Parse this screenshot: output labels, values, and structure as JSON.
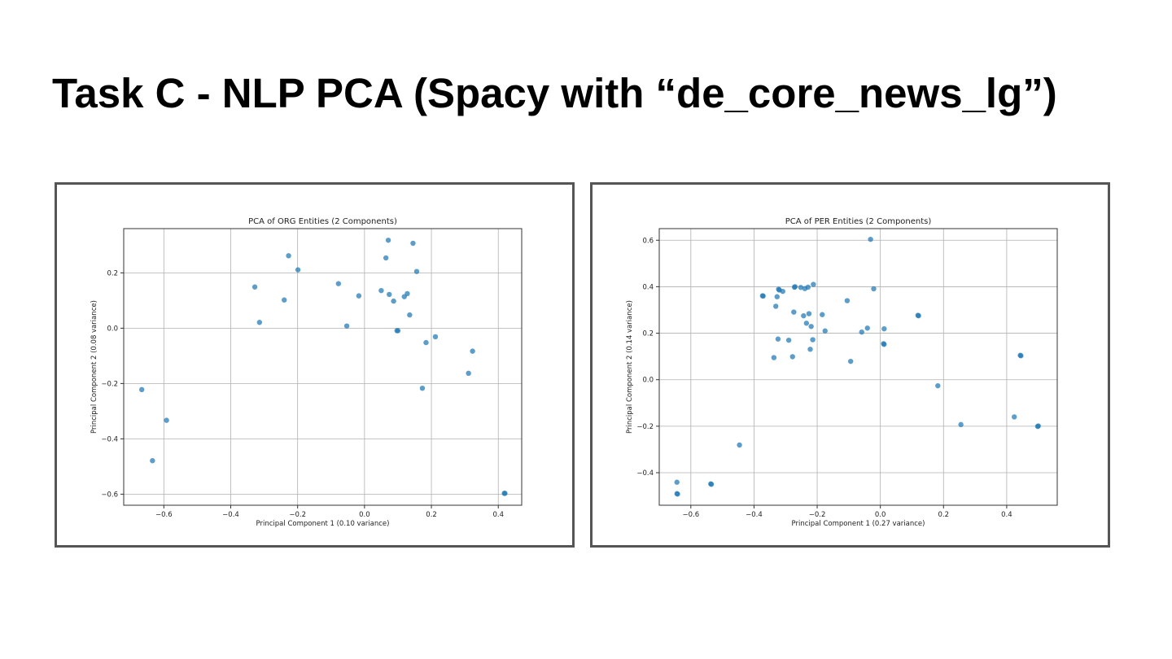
{
  "slide": {
    "title": "Task C - NLP PCA (Spacy with “de_core_news_lg”)"
  },
  "colors": {
    "point": "#1f77b4",
    "grid": "#b0b0b0",
    "axes": "#333333",
    "frame": "#555555"
  },
  "chart_data": [
    {
      "type": "scatter",
      "title": "PCA of ORG Entities (2 Components)",
      "xlabel": "Principal Component 1 (0.10 variance)",
      "ylabel": "Principal Component 2 (0.08 variance)",
      "xlim": [
        -0.72,
        0.47
      ],
      "ylim": [
        -0.64,
        0.36
      ],
      "xticks": [
        -0.6,
        -0.4,
        -0.2,
        0.0,
        0.2,
        0.4
      ],
      "xtick_labels": [
        "−0.6",
        "−0.4",
        "−0.2",
        "0.0",
        "0.2",
        "0.4"
      ],
      "yticks": [
        -0.6,
        -0.4,
        -0.2,
        0.0,
        0.2
      ],
      "ytick_labels": [
        "−0.6",
        "−0.4",
        "−0.2",
        "0.0",
        "0.2"
      ],
      "grid": true,
      "points": [
        [
          -0.666,
          -0.222
        ],
        [
          -0.634,
          -0.479
        ],
        [
          -0.592,
          -0.333
        ],
        [
          -0.328,
          0.149
        ],
        [
          -0.314,
          0.021
        ],
        [
          -0.24,
          0.102
        ],
        [
          -0.227,
          0.262
        ],
        [
          -0.199,
          0.211
        ],
        [
          -0.078,
          0.161
        ],
        [
          -0.053,
          0.008
        ],
        [
          -0.017,
          0.117
        ],
        [
          0.05,
          0.136
        ],
        [
          0.064,
          0.254
        ],
        [
          0.071,
          0.318
        ],
        [
          0.074,
          0.122
        ],
        [
          0.087,
          0.098
        ],
        [
          0.097,
          -0.009
        ],
        [
          0.1,
          -0.009
        ],
        [
          0.119,
          0.114
        ],
        [
          0.128,
          0.125
        ],
        [
          0.135,
          0.048
        ],
        [
          0.145,
          0.307
        ],
        [
          0.156,
          0.205
        ],
        [
          0.173,
          -0.217
        ],
        [
          0.184,
          -0.052
        ],
        [
          0.212,
          -0.031
        ],
        [
          0.311,
          -0.163
        ],
        [
          0.323,
          -0.083
        ],
        [
          0.418,
          -0.597
        ],
        [
          0.42,
          -0.597
        ]
      ]
    },
    {
      "type": "scatter",
      "title": "PCA of PER Entities (2 Components)",
      "xlabel": "Principal Component 1 (0.27 variance)",
      "ylabel": "Principal Component 2 (0.14 variance)",
      "xlim": [
        -0.7,
        0.56
      ],
      "ylim": [
        -0.54,
        0.65
      ],
      "xticks": [
        -0.6,
        -0.4,
        -0.2,
        0.0,
        0.2,
        0.4
      ],
      "xtick_labels": [
        "−0.6",
        "−0.4",
        "−0.2",
        "0.0",
        "0.2",
        "0.4"
      ],
      "yticks": [
        -0.4,
        -0.2,
        0.0,
        0.2,
        0.4,
        0.6
      ],
      "ytick_labels": [
        "−0.4",
        "−0.2",
        "0.0",
        "0.2",
        "0.4",
        "0.6"
      ],
      "grid": true,
      "points": [
        [
          -0.644,
          -0.441
        ],
        [
          -0.644,
          -0.49
        ],
        [
          -0.642,
          -0.492
        ],
        [
          -0.537,
          -0.448
        ],
        [
          -0.535,
          -0.45
        ],
        [
          -0.446,
          -0.281
        ],
        [
          -0.373,
          0.361
        ],
        [
          -0.371,
          0.36
        ],
        [
          -0.337,
          0.095
        ],
        [
          -0.331,
          0.316
        ],
        [
          -0.327,
          0.357
        ],
        [
          -0.324,
          0.175
        ],
        [
          -0.322,
          0.389
        ],
        [
          -0.32,
          0.386
        ],
        [
          -0.309,
          0.38
        ],
        [
          -0.29,
          0.17
        ],
        [
          -0.278,
          0.099
        ],
        [
          -0.274,
          0.291
        ],
        [
          -0.272,
          0.398
        ],
        [
          -0.27,
          0.4
        ],
        [
          -0.252,
          0.397
        ],
        [
          -0.243,
          0.275
        ],
        [
          -0.239,
          0.392
        ],
        [
          -0.234,
          0.243
        ],
        [
          -0.229,
          0.398
        ],
        [
          -0.226,
          0.284
        ],
        [
          -0.222,
          0.131
        ],
        [
          -0.219,
          0.229
        ],
        [
          -0.214,
          0.172
        ],
        [
          -0.212,
          0.41
        ],
        [
          -0.184,
          0.28
        ],
        [
          -0.175,
          0.21
        ],
        [
          -0.105,
          0.34
        ],
        [
          -0.094,
          0.079
        ],
        [
          -0.059,
          0.205
        ],
        [
          -0.041,
          0.222
        ],
        [
          -0.031,
          0.604
        ],
        [
          -0.021,
          0.391
        ],
        [
          0.01,
          0.155
        ],
        [
          0.012,
          0.152
        ],
        [
          0.012,
          0.219
        ],
        [
          0.119,
          0.277
        ],
        [
          0.121,
          0.275
        ],
        [
          0.182,
          -0.026
        ],
        [
          0.255,
          -0.193
        ],
        [
          0.424,
          -0.16
        ],
        [
          0.443,
          0.105
        ],
        [
          0.445,
          0.103
        ],
        [
          0.498,
          -0.201
        ],
        [
          0.5,
          -0.199
        ]
      ]
    }
  ]
}
